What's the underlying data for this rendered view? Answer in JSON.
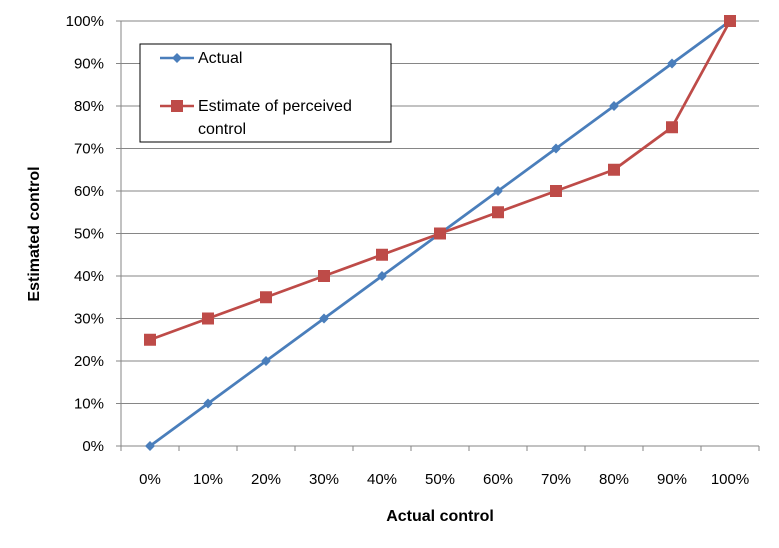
{
  "chart_data": {
    "type": "line",
    "categories": [
      "0%",
      "10%",
      "20%",
      "30%",
      "40%",
      "50%",
      "60%",
      "70%",
      "80%",
      "90%",
      "100%"
    ],
    "xlabel": "Actual control",
    "ylabel": "Estimated control",
    "ylim": [
      0,
      100
    ],
    "yticks": [
      "0%",
      "10%",
      "20%",
      "30%",
      "40%",
      "50%",
      "60%",
      "70%",
      "80%",
      "90%",
      "100%"
    ],
    "grid": "horizontal",
    "legend_position": "top-left",
    "series": [
      {
        "name": "Actual",
        "marker": "diamond",
        "color": "#4a7ebb",
        "values": [
          0,
          10,
          20,
          30,
          40,
          50,
          60,
          70,
          80,
          90,
          100
        ]
      },
      {
        "name": "Estimate of perceived control",
        "marker": "square",
        "color": "#be4b48",
        "values": [
          25,
          30,
          35,
          40,
          45,
          50,
          55,
          60,
          65,
          75,
          100
        ]
      }
    ]
  }
}
